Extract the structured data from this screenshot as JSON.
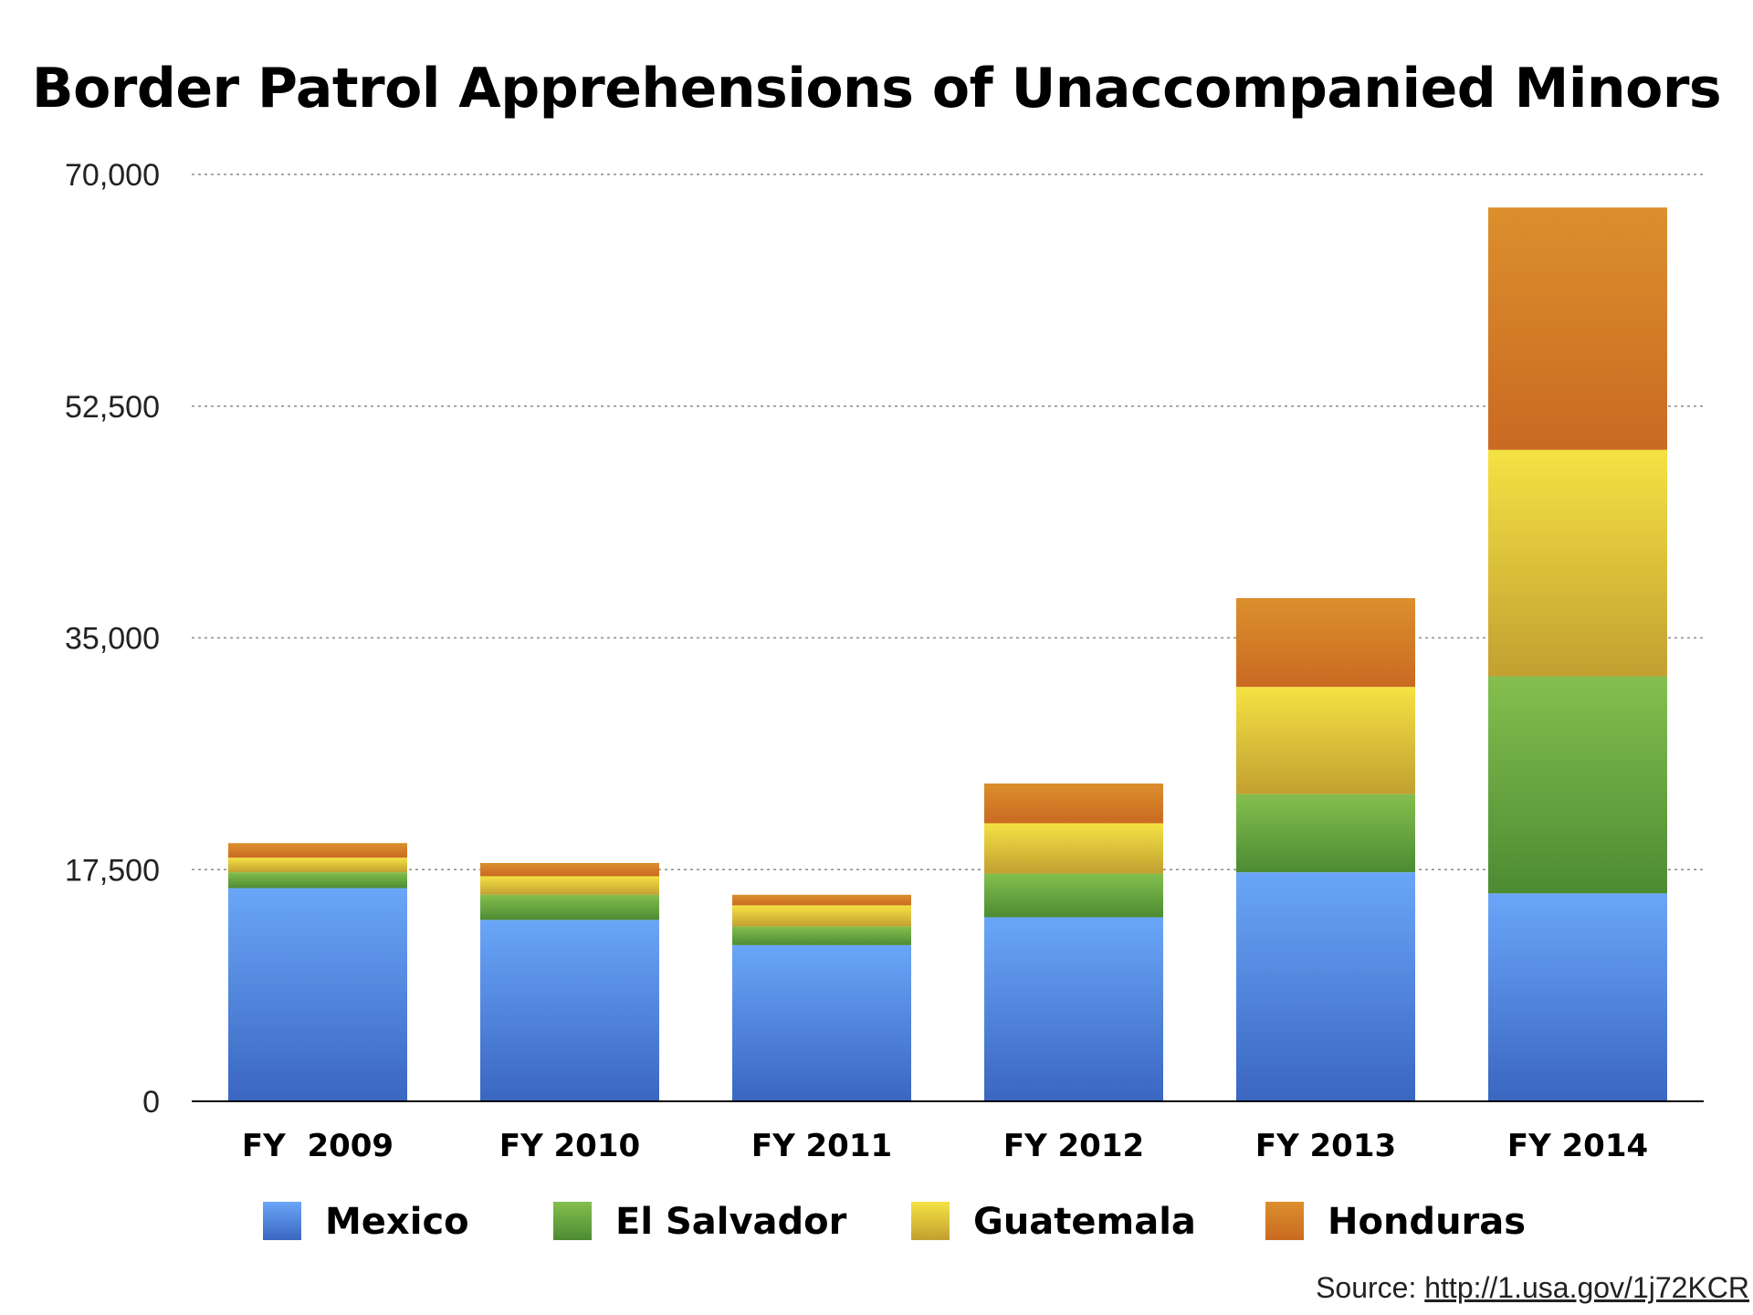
{
  "chart_data": {
    "type": "bar",
    "stacked": true,
    "title": "Border Patrol Apprehensions of Unaccompanied Minors",
    "xlabel": "",
    "ylabel": "",
    "categories": [
      "FY  2009",
      "FY 2010",
      "FY 2011",
      "FY 2012",
      "FY 2013",
      "FY 2014"
    ],
    "series": [
      {
        "name": "Mexico",
        "values": [
          16100,
          13700,
          11800,
          13900,
          17300,
          15700
        ],
        "color_top": "#6aa6f8",
        "color_bottom": "#3a66c0"
      },
      {
        "name": "El Salvador",
        "values": [
          1200,
          1900,
          1400,
          3300,
          5900,
          16400
        ],
        "color_top": "#84bf4e",
        "color_bottom": "#4d8b33"
      },
      {
        "name": "Guatemala",
        "values": [
          1100,
          1400,
          1600,
          3800,
          8100,
          17100
        ],
        "color_top": "#f5e243",
        "color_bottom": "#c2a031"
      },
      {
        "name": "Honduras",
        "values": [
          1100,
          1000,
          800,
          3000,
          6700,
          18300
        ],
        "color_top": "#dc8f2d",
        "color_bottom": "#c96a22"
      }
    ],
    "ylim": [
      0,
      70000
    ],
    "yticks": [
      "0",
      "17,500",
      "35,000",
      "52,500",
      "70,000"
    ],
    "ytick_values": [
      0,
      17500,
      35000,
      52500,
      70000
    ],
    "grid": "horizontal dotted",
    "legend_position": "bottom"
  },
  "source": {
    "prefix": "Source: ",
    "link": "http://1.usa.gov/1j72KCR"
  }
}
